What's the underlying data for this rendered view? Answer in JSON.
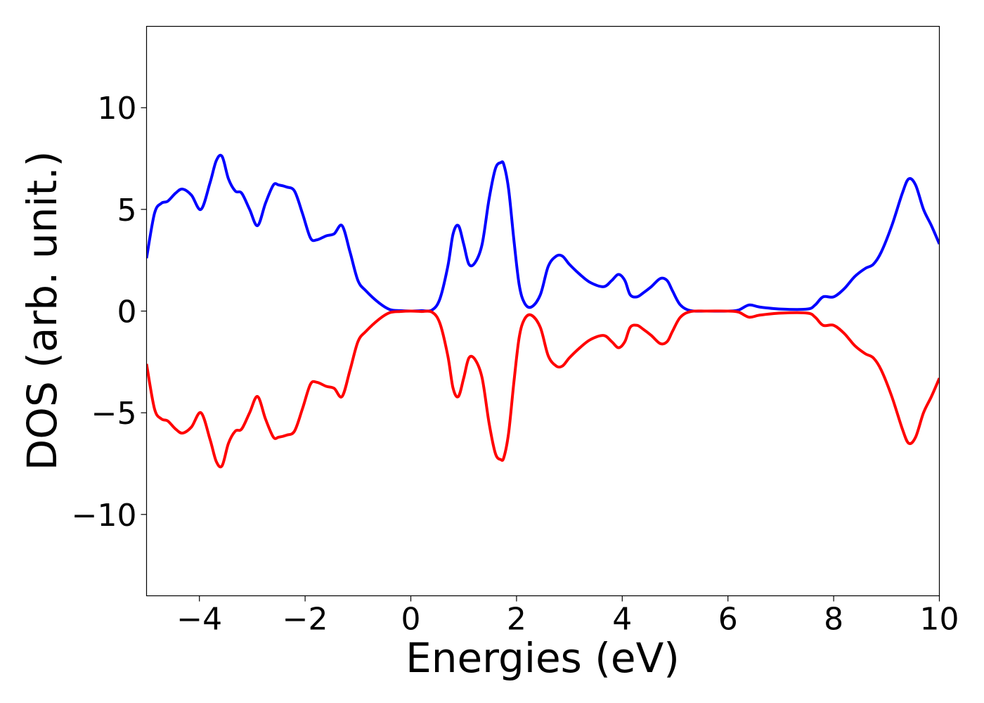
{
  "chart_data": {
    "type": "line",
    "title": "",
    "xlabel": "Energies (eV)",
    "ylabel": "DOS (arb. unit.)",
    "xlim": [
      -5,
      10
    ],
    "ylim": [
      -14,
      14
    ],
    "xticks": [
      -4,
      -2,
      0,
      2,
      4,
      6,
      8,
      10
    ],
    "xtick_labels": [
      "−4",
      "−2",
      "0",
      "2",
      "4",
      "6",
      "8",
      "10"
    ],
    "yticks": [
      -10,
      -5,
      0,
      5,
      10
    ],
    "ytick_labels": [
      "−10",
      "−5",
      "0",
      "5",
      "10"
    ],
    "grid": false,
    "legend": "none",
    "series": [
      {
        "color": "#0000ff",
        "x": [
          -5.0,
          -4.85,
          -4.72,
          -4.6,
          -4.45,
          -4.32,
          -4.15,
          -3.97,
          -3.8,
          -3.68,
          -3.57,
          -3.45,
          -3.32,
          -3.2,
          -3.05,
          -2.9,
          -2.75,
          -2.6,
          -2.5,
          -2.35,
          -2.2,
          -2.05,
          -1.9,
          -1.78,
          -1.6,
          -1.45,
          -1.3,
          -1.15,
          -1.0,
          -0.85,
          -0.6,
          -0.4,
          -0.2,
          0.0,
          0.2,
          0.4,
          0.55,
          0.7,
          0.8,
          0.9,
          1.0,
          1.1,
          1.22,
          1.35,
          1.48,
          1.6,
          1.7,
          1.76,
          1.85,
          1.95,
          2.05,
          2.15,
          2.28,
          2.45,
          2.6,
          2.75,
          2.87,
          3.0,
          3.2,
          3.4,
          3.65,
          3.8,
          3.93,
          4.05,
          4.15,
          4.28,
          4.4,
          4.55,
          4.72,
          4.85,
          4.95,
          5.1,
          5.3,
          5.6,
          6.0,
          6.2,
          6.4,
          6.6,
          7.0,
          7.5,
          7.65,
          7.8,
          8.0,
          8.2,
          8.4,
          8.6,
          8.75,
          8.9,
          9.1,
          9.3,
          9.42,
          9.55,
          9.7,
          9.85,
          10.0
        ],
        "values": [
          2.6,
          4.8,
          5.3,
          5.4,
          5.8,
          6.0,
          5.7,
          5.0,
          6.3,
          7.4,
          7.6,
          6.5,
          5.9,
          5.8,
          5.0,
          4.2,
          5.3,
          6.2,
          6.2,
          6.1,
          5.9,
          4.8,
          3.6,
          3.5,
          3.7,
          3.8,
          4.2,
          2.9,
          1.5,
          1.0,
          0.4,
          0.08,
          0.02,
          0.0,
          0.02,
          0.05,
          0.6,
          2.2,
          3.8,
          4.2,
          3.3,
          2.3,
          2.4,
          3.3,
          5.5,
          7.0,
          7.3,
          7.2,
          6.0,
          3.5,
          1.3,
          0.4,
          0.2,
          0.8,
          2.2,
          2.7,
          2.7,
          2.3,
          1.8,
          1.4,
          1.2,
          1.5,
          1.8,
          1.5,
          0.8,
          0.7,
          0.9,
          1.2,
          1.6,
          1.5,
          1.0,
          0.3,
          0.02,
          0.0,
          0.0,
          0.05,
          0.3,
          0.2,
          0.1,
          0.1,
          0.3,
          0.7,
          0.7,
          1.1,
          1.7,
          2.1,
          2.3,
          2.9,
          4.2,
          5.8,
          6.5,
          6.2,
          5.0,
          4.2,
          3.3
        ]
      },
      {
        "color": "#ff0000",
        "x": [
          -5.0,
          -4.85,
          -4.72,
          -4.6,
          -4.45,
          -4.32,
          -4.15,
          -3.97,
          -3.8,
          -3.68,
          -3.57,
          -3.45,
          -3.32,
          -3.2,
          -3.05,
          -2.9,
          -2.75,
          -2.6,
          -2.5,
          -2.35,
          -2.2,
          -2.05,
          -1.9,
          -1.78,
          -1.6,
          -1.45,
          -1.3,
          -1.15,
          -1.0,
          -0.85,
          -0.6,
          -0.4,
          -0.2,
          0.0,
          0.2,
          0.4,
          0.55,
          0.7,
          0.8,
          0.9,
          1.0,
          1.1,
          1.22,
          1.35,
          1.48,
          1.6,
          1.7,
          1.76,
          1.85,
          1.95,
          2.05,
          2.15,
          2.28,
          2.45,
          2.6,
          2.75,
          2.87,
          3.0,
          3.2,
          3.4,
          3.65,
          3.8,
          3.93,
          4.05,
          4.15,
          4.28,
          4.4,
          4.55,
          4.72,
          4.85,
          4.95,
          5.1,
          5.3,
          5.6,
          6.0,
          6.2,
          6.4,
          6.6,
          7.0,
          7.5,
          7.65,
          7.8,
          8.0,
          8.2,
          8.4,
          8.6,
          8.75,
          8.9,
          9.1,
          9.3,
          9.42,
          9.55,
          9.7,
          9.85,
          10.0
        ],
        "values": [
          -2.6,
          -4.8,
          -5.3,
          -5.4,
          -5.8,
          -6.0,
          -5.7,
          -5.0,
          -6.3,
          -7.4,
          -7.6,
          -6.5,
          -5.9,
          -5.8,
          -5.0,
          -4.2,
          -5.3,
          -6.2,
          -6.2,
          -6.1,
          -5.9,
          -4.8,
          -3.6,
          -3.5,
          -3.7,
          -3.8,
          -4.2,
          -2.9,
          -1.5,
          -1.0,
          -0.4,
          -0.08,
          -0.02,
          0.0,
          -0.02,
          -0.05,
          -0.6,
          -2.2,
          -3.8,
          -4.2,
          -3.3,
          -2.3,
          -2.4,
          -3.3,
          -5.5,
          -7.0,
          -7.3,
          -7.2,
          -6.0,
          -3.5,
          -1.3,
          -0.4,
          -0.2,
          -0.8,
          -2.2,
          -2.7,
          -2.7,
          -2.3,
          -1.8,
          -1.4,
          -1.2,
          -1.5,
          -1.8,
          -1.5,
          -0.8,
          -0.7,
          -0.9,
          -1.2,
          -1.6,
          -1.5,
          -1.0,
          -0.3,
          -0.02,
          0.0,
          0.0,
          -0.05,
          -0.3,
          -0.2,
          -0.1,
          -0.1,
          -0.3,
          -0.7,
          -0.7,
          -1.1,
          -1.7,
          -2.1,
          -2.3,
          -2.9,
          -4.2,
          -5.8,
          -6.5,
          -6.2,
          -5.0,
          -4.2,
          -3.3
        ]
      }
    ]
  }
}
